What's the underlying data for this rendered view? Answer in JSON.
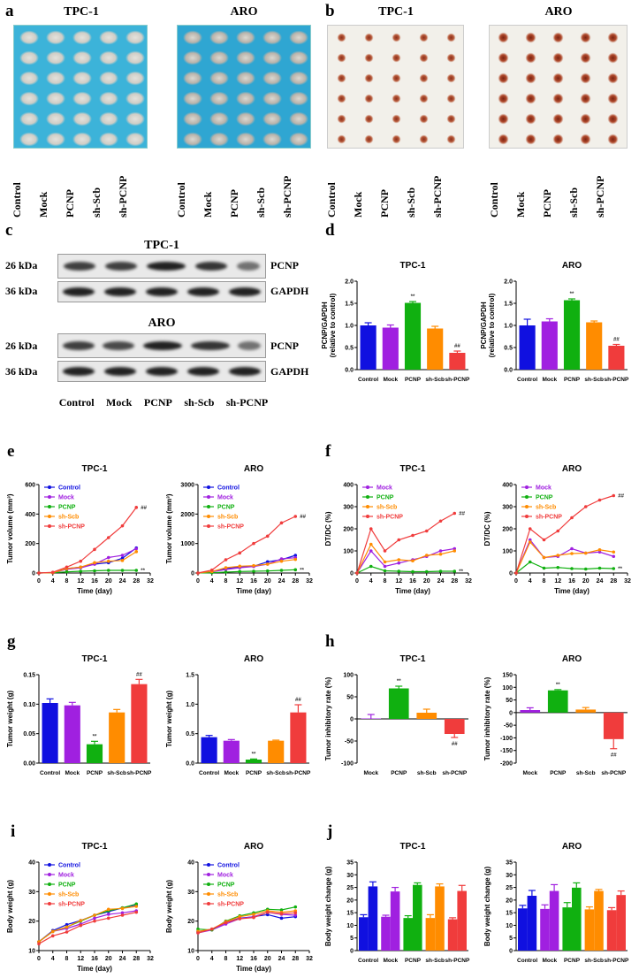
{
  "panel_labels": {
    "a": "a",
    "b": "b",
    "c": "c",
    "d": "d",
    "e": "e",
    "f": "f",
    "g": "g",
    "h": "h",
    "i": "i",
    "j": "j"
  },
  "a": {
    "titles": [
      "TPC-1",
      "ARO"
    ],
    "groups": [
      "Control",
      "Mock",
      "PCNP",
      "sh-Scb",
      "sh-PCNP"
    ]
  },
  "b": {
    "titles": [
      "TPC-1",
      "ARO"
    ],
    "groups": [
      "Control",
      "Mock",
      "PCNP",
      "sh-Scb",
      "sh-PCNP"
    ]
  },
  "c": {
    "titles": [
      "TPC-1",
      "ARO"
    ],
    "markers": [
      "26 kDa",
      "36 kDa"
    ],
    "proteins": [
      "PCNP",
      "GAPDH"
    ],
    "groups": [
      "Control",
      "Mock",
      "PCNP",
      "sh-Scb",
      "sh-PCNP"
    ]
  },
  "colors": {
    "Control": "#1010e0",
    "Mock": "#a020e0",
    "PCNP": "#10b010",
    "sh-Scb": "#ff8c00",
    "sh-PCNP": "#f03c3c"
  },
  "chart_data": [
    {
      "panel": "d",
      "type": "bar",
      "title": "TPC-1",
      "ylabel": [
        "PCNP/GAPDH",
        "(relative to control)"
      ],
      "ylim": [
        0,
        2
      ],
      "yticks": [
        "0.0",
        "0.5",
        "1.0",
        "1.5",
        "2.0"
      ],
      "categories": [
        "Control",
        "Mock",
        "PCNP",
        "sh-Scb",
        "sh-PCNP"
      ],
      "values": [
        1.0,
        0.95,
        1.51,
        0.93,
        0.38
      ],
      "errors": [
        0.06,
        0.06,
        0.03,
        0.05,
        0.04
      ],
      "marks": [
        "",
        "",
        "**",
        "",
        "##"
      ]
    },
    {
      "panel": "d",
      "type": "bar",
      "title": "ARO",
      "ylabel": [
        "PCNP/GAPDH",
        "(relative to control)"
      ],
      "ylim": [
        0,
        2
      ],
      "yticks": [
        "0.0",
        "0.5",
        "1.0",
        "1.5",
        "2.0"
      ],
      "categories": [
        "Control",
        "Mock",
        "PCNP",
        "sh-Scb",
        "sh-PCNP"
      ],
      "values": [
        1.0,
        1.09,
        1.57,
        1.07,
        0.54
      ],
      "errors": [
        0.14,
        0.06,
        0.03,
        0.03,
        0.03
      ],
      "marks": [
        "",
        "",
        "**",
        "",
        "##"
      ]
    },
    {
      "panel": "e",
      "type": "line",
      "title": "TPC-1",
      "ylabel": [
        "Tumor volume (mm³)"
      ],
      "xlabel": "Time (day)",
      "ylim": [
        0,
        600
      ],
      "yticks": [
        "0",
        "200",
        "400",
        "600"
      ],
      "xlim": [
        0,
        32
      ],
      "xticks": [
        "0",
        "4",
        "8",
        "12",
        "16",
        "20",
        "24",
        "28",
        "32"
      ],
      "x": [
        0,
        4,
        8,
        12,
        16,
        20,
        24,
        28
      ],
      "series": [
        {
          "name": "Control",
          "values": [
            0,
            2,
            30,
            40,
            60,
            70,
            100,
            170
          ]
        },
        {
          "name": "Mock",
          "values": [
            0,
            2,
            25,
            35,
            60,
            105,
            120,
            165
          ]
        },
        {
          "name": "PCNP",
          "values": [
            0,
            2,
            8,
            12,
            15,
            18,
            18,
            18
          ],
          "end_mark": "**"
        },
        {
          "name": "sh-Scb",
          "values": [
            0,
            2,
            30,
            40,
            70,
            80,
            85,
            145
          ]
        },
        {
          "name": "sh-PCNP",
          "values": [
            0,
            5,
            40,
            80,
            160,
            240,
            320,
            445
          ],
          "end_mark": "##"
        }
      ]
    },
    {
      "panel": "e",
      "type": "line",
      "title": "ARO",
      "ylabel": [
        "Tumor volume (mm³)"
      ],
      "xlabel": "Time (day)",
      "ylim": [
        0,
        3000
      ],
      "yticks": [
        "0",
        "1000",
        "2000",
        "3000"
      ],
      "xlim": [
        0,
        32
      ],
      "xticks": [
        "0",
        "4",
        "8",
        "12",
        "16",
        "20",
        "24",
        "28",
        "32"
      ],
      "x": [
        0,
        4,
        8,
        12,
        16,
        20,
        24,
        28
      ],
      "series": [
        {
          "name": "Control",
          "values": [
            0,
            50,
            150,
            200,
            230,
            380,
            450,
            600
          ]
        },
        {
          "name": "Mock",
          "values": [
            0,
            40,
            120,
            180,
            220,
            300,
            480,
            520
          ]
        },
        {
          "name": "PCNP",
          "values": [
            0,
            10,
            30,
            50,
            60,
            70,
            90,
            110
          ],
          "end_mark": "**"
        },
        {
          "name": "sh-Scb",
          "values": [
            0,
            50,
            180,
            230,
            250,
            300,
            400,
            460
          ]
        },
        {
          "name": "sh-PCNP",
          "values": [
            0,
            100,
            450,
            680,
            1000,
            1250,
            1700,
            1920
          ],
          "end_mark": "##"
        }
      ]
    },
    {
      "panel": "f",
      "type": "line",
      "title": "TPC-1",
      "ylabel": [
        "DT/DC (%)"
      ],
      "xlabel": "Time (day)",
      "ylim": [
        0,
        400
      ],
      "yticks": [
        "0",
        "100",
        "200",
        "300",
        "400"
      ],
      "xlim": [
        0,
        32
      ],
      "xticks": [
        "0",
        "4",
        "8",
        "12",
        "16",
        "20",
        "24",
        "28",
        "32"
      ],
      "x": [
        0,
        4,
        8,
        12,
        16,
        20,
        24,
        28
      ],
      "series": [
        {
          "name": "Mock",
          "values": [
            0,
            100,
            30,
            45,
            60,
            75,
            100,
            110
          ]
        },
        {
          "name": "PCNP",
          "values": [
            0,
            30,
            10,
            8,
            6,
            6,
            8,
            8
          ],
          "end_mark": "**"
        },
        {
          "name": "sh-Scb",
          "values": [
            0,
            130,
            50,
            60,
            55,
            80,
            85,
            100
          ]
        },
        {
          "name": "sh-PCNP",
          "values": [
            0,
            200,
            100,
            150,
            170,
            190,
            235,
            270
          ],
          "end_mark": "##"
        }
      ]
    },
    {
      "panel": "f",
      "type": "line",
      "title": "ARO",
      "ylabel": [
        "DT/DC (%)"
      ],
      "xlabel": "Time (day)",
      "ylim": [
        0,
        400
      ],
      "yticks": [
        "0",
        "100",
        "200",
        "300",
        "400"
      ],
      "xlim": [
        0,
        32
      ],
      "xticks": [
        "0",
        "4",
        "8",
        "12",
        "16",
        "20",
        "24",
        "28",
        "32"
      ],
      "x": [
        0,
        4,
        8,
        12,
        16,
        20,
        24,
        28
      ],
      "series": [
        {
          "name": "Mock",
          "values": [
            0,
            150,
            70,
            75,
            110,
            90,
            95,
            75
          ]
        },
        {
          "name": "PCNP",
          "values": [
            0,
            50,
            22,
            25,
            20,
            18,
            22,
            20
          ],
          "end_mark": "**"
        },
        {
          "name": "sh-Scb",
          "values": [
            0,
            140,
            70,
            80,
            88,
            90,
            105,
            95
          ]
        },
        {
          "name": "sh-PCNP",
          "values": [
            0,
            200,
            150,
            190,
            250,
            300,
            330,
            350
          ],
          "end_mark": "##"
        }
      ]
    },
    {
      "panel": "g",
      "type": "bar",
      "title": "TPC-1",
      "ylabel": [
        "Tumor weight (g)"
      ],
      "ylim": [
        0,
        0.15
      ],
      "yticks": [
        "0.00",
        "0.05",
        "0.10",
        "0.15"
      ],
      "categories": [
        "Control",
        "Mock",
        "PCNP",
        "sh-Scb",
        "sh-PCNP"
      ],
      "values": [
        0.102,
        0.098,
        0.032,
        0.086,
        0.134
      ],
      "errors": [
        0.007,
        0.005,
        0.005,
        0.005,
        0.008
      ],
      "marks": [
        "",
        "",
        "**",
        "",
        "##"
      ]
    },
    {
      "panel": "g",
      "type": "bar",
      "title": "ARO",
      "ylabel": [
        "Tumor weight (g)"
      ],
      "ylim": [
        0,
        1.5
      ],
      "yticks": [
        "0.0",
        "0.5",
        "1.0",
        "1.5"
      ],
      "categories": [
        "Control",
        "Mock",
        "PCNP",
        "sh-Scb",
        "sh-PCNP"
      ],
      "values": [
        0.44,
        0.38,
        0.06,
        0.38,
        0.86
      ],
      "errors": [
        0.03,
        0.02,
        0.01,
        0.01,
        0.13
      ],
      "marks": [
        "",
        "",
        "**",
        "",
        "##"
      ]
    },
    {
      "panel": "h",
      "type": "bar",
      "title": "TPC-1",
      "ylabel": [
        "Tumor inhibitory rate (%)"
      ],
      "ylim": [
        -100,
        100
      ],
      "yticks": [
        "-100",
        "-50",
        "0",
        "50",
        "100"
      ],
      "categories": [
        "Mock",
        "PCNP",
        "sh-Scb",
        "sh-PCNP"
      ],
      "values": [
        1,
        69,
        14,
        -34
      ],
      "errors": [
        9,
        5,
        8,
        8
      ],
      "marks": [
        "",
        "**",
        "",
        "##"
      ]
    },
    {
      "panel": "h",
      "type": "bar",
      "title": "ARO",
      "ylabel": [
        "Tumor inhibitory rate (%)"
      ],
      "ylim": [
        -200,
        150
      ],
      "yticks": [
        "-200",
        "-150",
        "-100",
        "-50",
        "0",
        "50",
        "100",
        "150"
      ],
      "categories": [
        "Mock",
        "PCNP",
        "sh-Scb",
        "sh-PCNP"
      ],
      "values": [
        10,
        88,
        12,
        -105
      ],
      "errors": [
        9,
        3,
        8,
        38
      ],
      "marks": [
        "",
        "**",
        "",
        "##"
      ]
    },
    {
      "panel": "i",
      "type": "line",
      "title": "TPC-1",
      "ylabel": [
        "Body weight (g)"
      ],
      "xlabel": "Time (day)",
      "ylim": [
        10,
        40
      ],
      "yticks": [
        "10",
        "20",
        "30",
        "40"
      ],
      "xlim": [
        0,
        32
      ],
      "xticks": [
        "0",
        "4",
        "8",
        "12",
        "16",
        "20",
        "24",
        "28",
        "32"
      ],
      "x": [
        0,
        4,
        8,
        12,
        16,
        20,
        24,
        28
      ],
      "series": [
        {
          "name": "Control",
          "values": [
            13,
            16.8,
            18.8,
            20.2,
            22,
            23.2,
            24.5,
            25.5
          ]
        },
        {
          "name": "Mock",
          "values": [
            13,
            16.5,
            17.5,
            19,
            21,
            22.3,
            22.8,
            23.5
          ]
        },
        {
          "name": "PCNP",
          "values": [
            13,
            16.5,
            18,
            20,
            22,
            23.5,
            24.5,
            25.8
          ]
        },
        {
          "name": "sh-Scb",
          "values": [
            13,
            16.5,
            18,
            20.2,
            22,
            24,
            24.3,
            25
          ]
        },
        {
          "name": "sh-PCNP",
          "values": [
            12.3,
            15,
            16.3,
            18.5,
            20,
            21,
            22,
            23
          ]
        }
      ]
    },
    {
      "panel": "i",
      "type": "line",
      "title": "ARO",
      "ylabel": [
        "Body weight (g)"
      ],
      "xlabel": "Time (day)",
      "ylim": [
        10,
        40
      ],
      "yticks": [
        "10",
        "20",
        "30",
        "40"
      ],
      "xlim": [
        0,
        32
      ],
      "xticks": [
        "0",
        "4",
        "8",
        "12",
        "16",
        "20",
        "24",
        "28",
        "32"
      ],
      "x": [
        0,
        4,
        8,
        12,
        16,
        20,
        24,
        28
      ],
      "series": [
        {
          "name": "Control",
          "values": [
            16.5,
            17.2,
            19.5,
            21,
            21.5,
            22.2,
            21,
            21.5
          ]
        },
        {
          "name": "Mock",
          "values": [
            16,
            17,
            19,
            20.8,
            21.5,
            23,
            22.3,
            22
          ]
        },
        {
          "name": "PCNP",
          "values": [
            17.3,
            17,
            20,
            21.8,
            22.8,
            24,
            23.8,
            24.8
          ]
        },
        {
          "name": "sh-Scb",
          "values": [
            16.5,
            17.3,
            19.8,
            21.5,
            22.3,
            23.5,
            23,
            23.5
          ]
        },
        {
          "name": "sh-PCNP",
          "values": [
            16,
            17.3,
            19.5,
            20.8,
            21.2,
            23,
            22.5,
            22.8
          ]
        }
      ]
    },
    {
      "panel": "j",
      "type": "grouped_bar",
      "title": "TPC-1",
      "ylabel": [
        "Body weight change (g)"
      ],
      "ylim": [
        0,
        35
      ],
      "yticks": [
        "0",
        "5",
        "10",
        "15",
        "20",
        "25",
        "30",
        "35"
      ],
      "categories": [
        "Control",
        "Mock",
        "PCNP",
        "sh-Scb",
        "sh-PCNP"
      ],
      "series": [
        {
          "values": [
            13.2,
            13.4,
            12.9,
            12.9,
            12.4
          ],
          "errors": [
            1,
            0.6,
            0.9,
            1.3,
            0.6
          ]
        },
        {
          "values": [
            25.4,
            23.4,
            26,
            25.4,
            23.6
          ],
          "errors": [
            1.8,
            1.6,
            0.8,
            1,
            2.2
          ]
        }
      ]
    },
    {
      "panel": "j",
      "type": "grouped_bar",
      "title": "ARO",
      "ylabel": [
        "Body weight change (g)"
      ],
      "ylim": [
        0,
        35
      ],
      "yticks": [
        "0",
        "5",
        "10",
        "15",
        "20",
        "25",
        "30",
        "35"
      ],
      "categories": [
        "Control",
        "Mock",
        "PCNP",
        "sh-Scb",
        "sh-PCNP"
      ],
      "series": [
        {
          "values": [
            16.7,
            16.5,
            17.1,
            16.3,
            16.0
          ],
          "errors": [
            1.2,
            1.6,
            1.9,
            1,
            1
          ]
        },
        {
          "values": [
            21.7,
            23.6,
            24.9,
            23.6,
            22.0
          ],
          "errors": [
            2.1,
            2.5,
            1.9,
            0.6,
            1.6
          ]
        }
      ]
    }
  ]
}
